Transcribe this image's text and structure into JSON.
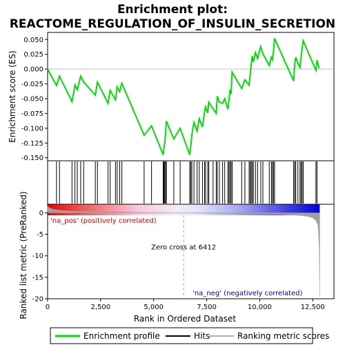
{
  "chart_data": {
    "type": "line",
    "title_line1": "Enrichment plot:",
    "title_line2": "REACTOME_REGULATION_OF_INSULIN_SECRETION",
    "es_panel": {
      "ylabel": "Enrichment score (ES)",
      "ylim": [
        -0.155,
        0.062
      ],
      "yticks": [
        0.05,
        0.025,
        0.0,
        -0.025,
        -0.05,
        -0.075,
        -0.1,
        -0.125,
        -0.15
      ],
      "ytick_labels": [
        "0.050",
        "0.025",
        "0.000",
        "-0.025",
        "-0.050",
        "-0.075",
        "-0.100",
        "-0.125",
        "-0.150"
      ],
      "series": [
        {
          "name": "Enrichment profile",
          "color": "#00dd00",
          "x": [
            0,
            420,
            560,
            1150,
            1290,
            1400,
            1560,
            1700,
            2250,
            2350,
            2850,
            2950,
            3200,
            3280,
            3400,
            3500,
            4550,
            4900,
            5450,
            5480,
            5520,
            5560,
            5600,
            5950,
            6250,
            6700,
            6750,
            6800,
            6900,
            7050,
            7150,
            7300,
            7400,
            7450,
            7550,
            7600,
            7800,
            7950,
            8000,
            8100,
            8250,
            8350,
            8500,
            8550,
            8600,
            8650,
            8700,
            9150,
            9300,
            9500,
            9550,
            9600,
            9650,
            9700,
            9800,
            9900,
            10050,
            10150,
            10450,
            10550,
            10600,
            10650,
            10700,
            11600,
            11650,
            11700,
            11800,
            11900,
            11950,
            12000,
            12050,
            12650,
            12700,
            12800
          ],
          "y": [
            0.0,
            -0.028,
            -0.012,
            -0.055,
            -0.027,
            -0.035,
            -0.012,
            -0.022,
            -0.044,
            -0.022,
            -0.058,
            -0.036,
            -0.052,
            -0.03,
            -0.038,
            -0.024,
            -0.112,
            -0.096,
            -0.145,
            -0.135,
            -0.125,
            -0.11,
            -0.088,
            -0.118,
            -0.1,
            -0.145,
            -0.13,
            -0.112,
            -0.09,
            -0.105,
            -0.084,
            -0.098,
            -0.072,
            -0.064,
            -0.074,
            -0.056,
            -0.067,
            -0.075,
            -0.046,
            -0.056,
            -0.058,
            -0.05,
            -0.068,
            -0.054,
            -0.035,
            -0.042,
            -0.005,
            -0.033,
            -0.018,
            -0.027,
            -0.01,
            0.007,
            0.022,
            0.012,
            0.028,
            0.018,
            0.038,
            0.026,
            0.006,
            0.02,
            0.016,
            0.03,
            0.052,
            -0.02,
            0.008,
            0.02,
            0.01,
            0.003,
            0.02,
            0.035,
            0.048,
            -0.002,
            0.015,
            0.001
          ]
        }
      ]
    },
    "hits": [
      420,
      560,
      1150,
      1290,
      1400,
      1560,
      1700,
      2250,
      2350,
      2850,
      2950,
      3200,
      3280,
      3400,
      3500,
      4550,
      4900,
      5450,
      5480,
      5520,
      5560,
      5600,
      5950,
      6250,
      6700,
      6750,
      6800,
      6900,
      7050,
      7150,
      7300,
      7400,
      7450,
      7550,
      7600,
      7800,
      7950,
      8000,
      8100,
      8250,
      8350,
      8500,
      8550,
      8600,
      8650,
      8700,
      9150,
      9300,
      9500,
      9550,
      9600,
      9650,
      9700,
      9800,
      9900,
      10050,
      10150,
      10450,
      10550,
      10600,
      10650,
      10700,
      11600,
      11650,
      11700,
      11800,
      11900,
      11950,
      12000,
      12050,
      12650,
      12700
    ],
    "metric_panel": {
      "ylabel": "Ranked list metric (PreRanked)",
      "ylim": [
        -20,
        2
      ],
      "yticks": [
        0,
        -5,
        -10,
        -15,
        -20
      ],
      "ytick_labels": [
        "0",
        "-5",
        "-10",
        "-15",
        "-20"
      ],
      "profile_x": [
        0,
        100,
        300,
        600,
        1000,
        2000,
        3000,
        4000,
        5000,
        6000,
        6412,
        7000,
        8000,
        9000,
        10000,
        11000,
        11500,
        12000,
        12300,
        12500,
        12650,
        12750,
        12800,
        12830
      ],
      "profile_y": [
        1.6,
        1.1,
        0.8,
        0.6,
        0.45,
        0.3,
        0.2,
        0.12,
        0.06,
        0.02,
        0.0,
        -0.05,
        -0.1,
        -0.18,
        -0.28,
        -0.4,
        -0.5,
        -0.65,
        -0.85,
        -1.2,
        -1.8,
        -3.0,
        -8.0,
        -19.5
      ],
      "zero_cross_label": "Zero cross at 6412",
      "zero_cross_x": 6412,
      "pos_label": "'na_pos' (positively correlated)",
      "neg_label": "'na_neg' (negatively correlated)"
    },
    "xlabel": "Rank in Ordered Dataset",
    "xlim": [
      0,
      13500
    ],
    "xticks": [
      0,
      2500,
      5000,
      7500,
      10000,
      12500
    ],
    "xtick_labels": [
      "0",
      "2,500",
      "5,000",
      "7,500",
      "10,000",
      "12,500"
    ],
    "n_genes": 12830,
    "legend": [
      {
        "label": "Enrichment profile",
        "color": "#00dd00"
      },
      {
        "label": "Hits",
        "color": "#000000"
      },
      {
        "label": "Ranking metric scores",
        "color": "#b0b0b0"
      }
    ],
    "colors": {
      "pos_bar": "#ee0000",
      "neg_bar": "#0000dd",
      "pos_text": "#dd0000",
      "neg_text": "#0000bb",
      "metric_fill": "#a0a0a0",
      "zero_line": "#a8a8a8"
    }
  }
}
